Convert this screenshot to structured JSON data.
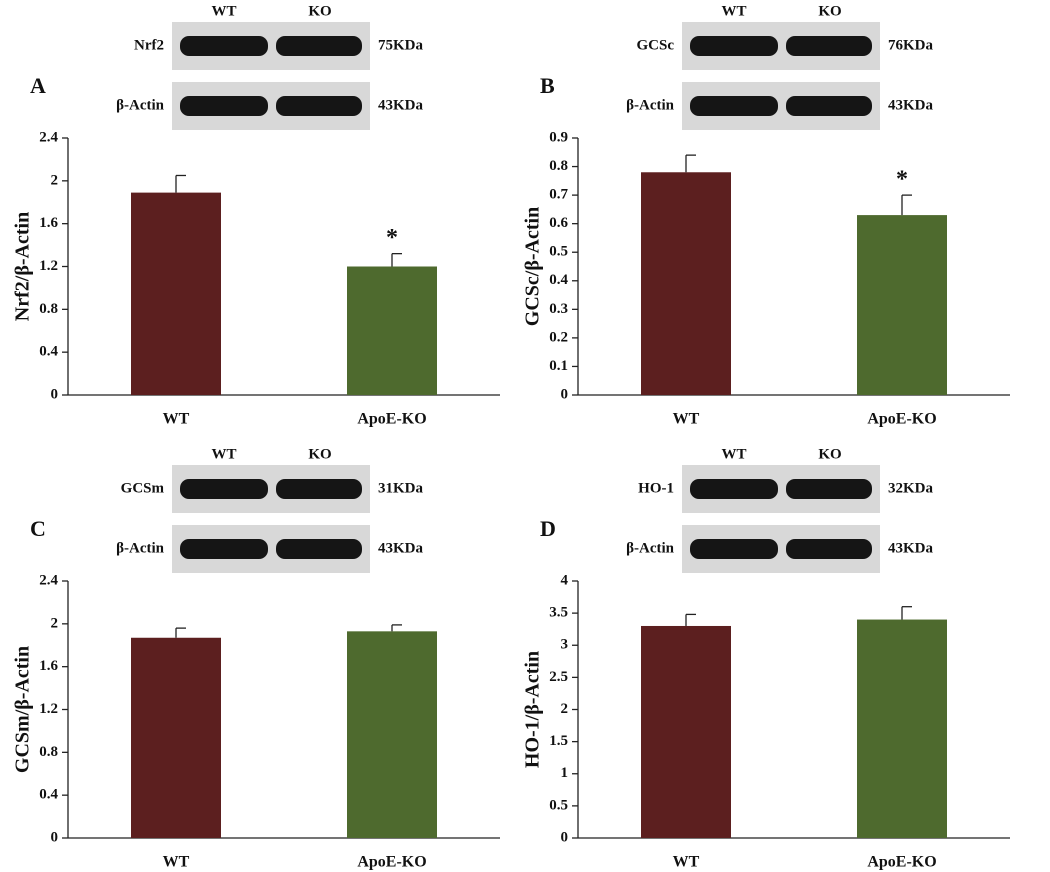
{
  "chart_data": [
    {
      "type": "bar",
      "panel": "A",
      "ylabel": "Nrf2/β-Actin",
      "lanes": [
        "WT",
        "KO"
      ],
      "blots": [
        {
          "protein": "Nrf2",
          "size": "75KDa"
        },
        {
          "protein": "β-Actin",
          "size": "43KDa"
        }
      ],
      "categories": [
        "WT",
        "ApoE-KO"
      ],
      "values": [
        1.89,
        1.2
      ],
      "errors": [
        0.16,
        0.12
      ],
      "colors": [
        "#5c1f1f",
        "#4e6a2e"
      ],
      "significance": [
        null,
        "*"
      ],
      "ylim": [
        0,
        2.4
      ],
      "yticks": [
        0,
        0.4,
        0.8,
        1.2,
        1.6,
        2,
        2.4
      ]
    },
    {
      "type": "bar",
      "panel": "B",
      "ylabel": "GCSc/β-Actin",
      "lanes": [
        "WT",
        "KO"
      ],
      "blots": [
        {
          "protein": "GCSc",
          "size": "76KDa"
        },
        {
          "protein": "β-Actin",
          "size": "43KDa"
        }
      ],
      "categories": [
        "WT",
        "ApoE-KO"
      ],
      "values": [
        0.78,
        0.63
      ],
      "errors": [
        0.06,
        0.07
      ],
      "colors": [
        "#5c1f1f",
        "#4e6a2e"
      ],
      "significance": [
        null,
        "*"
      ],
      "ylim": [
        0,
        0.9
      ],
      "yticks": [
        0,
        0.1,
        0.2,
        0.3,
        0.4,
        0.5,
        0.6,
        0.7,
        0.8,
        0.9
      ]
    },
    {
      "type": "bar",
      "panel": "C",
      "ylabel": "GCSm/β-Actin",
      "lanes": [
        "WT",
        "KO"
      ],
      "blots": [
        {
          "protein": "GCSm",
          "size": "31KDa"
        },
        {
          "protein": "β-Actin",
          "size": "43KDa"
        }
      ],
      "categories": [
        "WT",
        "ApoE-KO"
      ],
      "values": [
        1.87,
        1.93
      ],
      "errors": [
        0.09,
        0.06
      ],
      "colors": [
        "#5c1f1f",
        "#4e6a2e"
      ],
      "ylim": [
        0,
        2.4
      ],
      "yticks": [
        0,
        0.4,
        0.8,
        1.2,
        1.6,
        2,
        2.4
      ]
    },
    {
      "type": "bar",
      "panel": "D",
      "ylabel": "HO-1/β-Actin",
      "lanes": [
        "WT",
        "KO"
      ],
      "blots": [
        {
          "protein": "HO-1",
          "size": "32KDa"
        },
        {
          "protein": "β-Actin",
          "size": "43KDa"
        }
      ],
      "categories": [
        "WT",
        "ApoE-KO"
      ],
      "values": [
        3.3,
        3.4
      ],
      "errors": [
        0.18,
        0.2
      ],
      "colors": [
        "#5c1f1f",
        "#4e6a2e"
      ],
      "ylim": [
        0,
        4
      ],
      "yticks": [
        0,
        0.5,
        1,
        1.5,
        2,
        2.5,
        3,
        3.5,
        4
      ]
    }
  ]
}
